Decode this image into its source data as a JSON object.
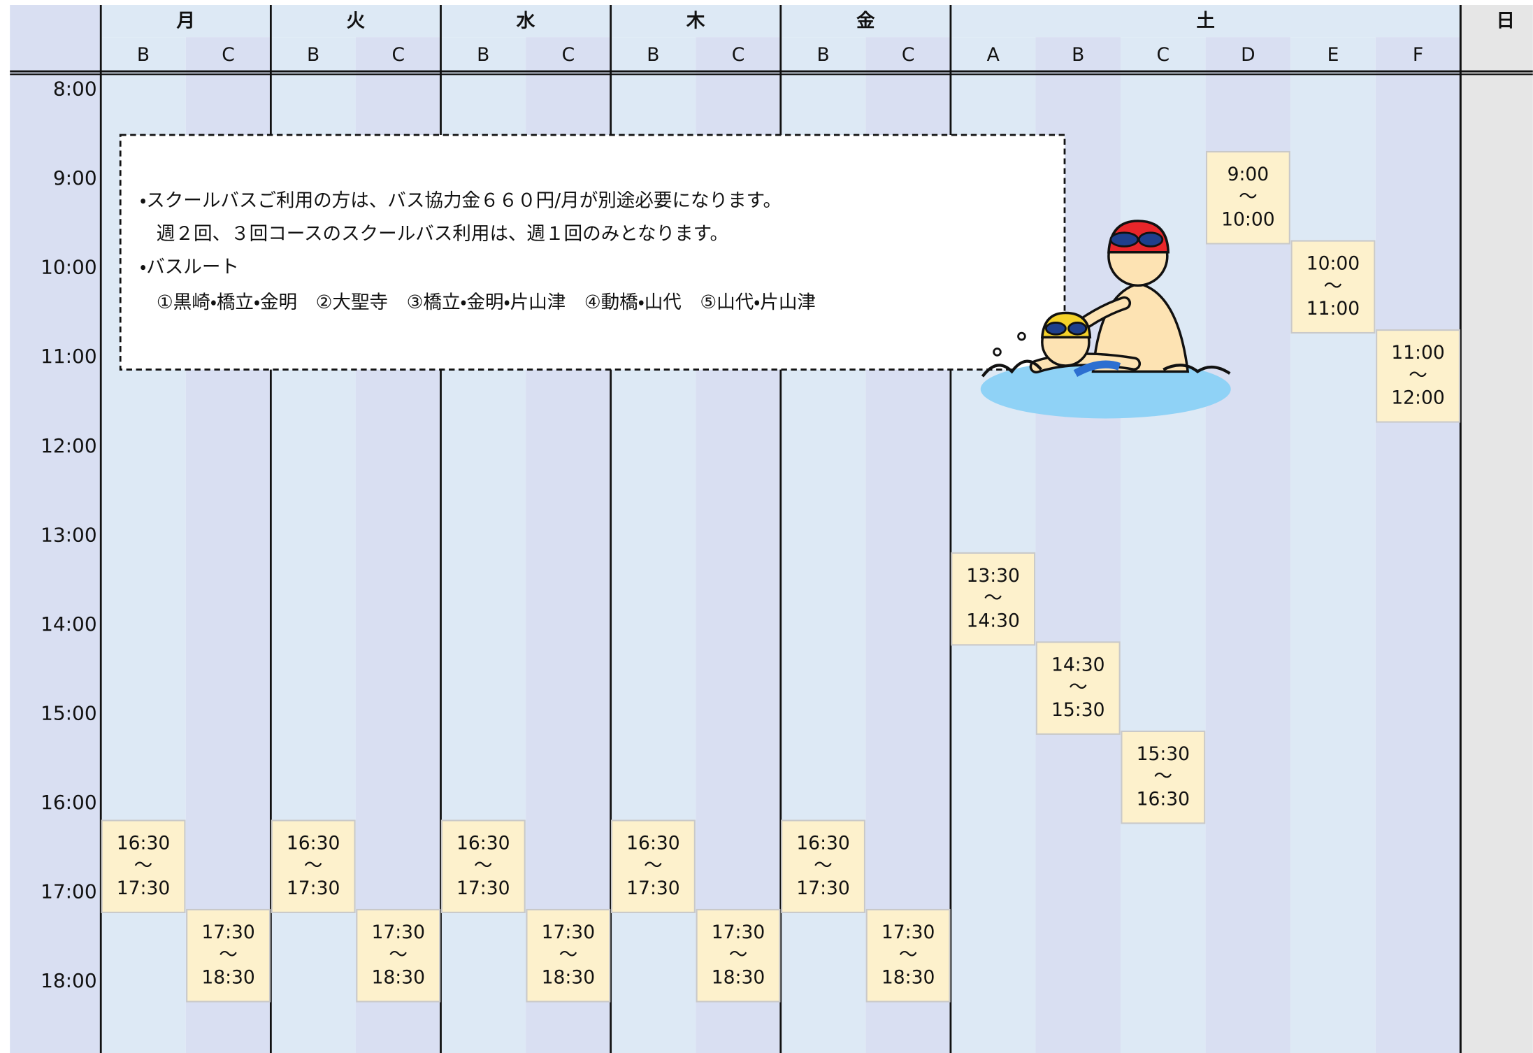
{
  "header": {
    "days": [
      {
        "label": "月",
        "columns": [
          {
            "label": "B",
            "slots": [
              {
                "start": "16:30",
                "separator": "〜",
                "end": "17:30"
              }
            ]
          },
          {
            "label": "C",
            "slots": [
              {
                "start": "17:30",
                "separator": "〜",
                "end": "18:30"
              }
            ]
          }
        ]
      },
      {
        "label": "火",
        "columns": [
          {
            "label": "B",
            "slots": [
              {
                "start": "16:30",
                "separator": "〜",
                "end": "17:30"
              }
            ]
          },
          {
            "label": "C",
            "slots": [
              {
                "start": "17:30",
                "separator": "〜",
                "end": "18:30"
              }
            ]
          }
        ]
      },
      {
        "label": "水",
        "columns": [
          {
            "label": "B",
            "slots": [
              {
                "start": "16:30",
                "separator": "〜",
                "end": "17:30"
              }
            ]
          },
          {
            "label": "C",
            "slots": [
              {
                "start": "17:30",
                "separator": "〜",
                "end": "18:30"
              }
            ]
          }
        ]
      },
      {
        "label": "木",
        "columns": [
          {
            "label": "B",
            "slots": [
              {
                "start": "16:30",
                "separator": "〜",
                "end": "17:30"
              }
            ]
          },
          {
            "label": "C",
            "slots": [
              {
                "start": "17:30",
                "separator": "〜",
                "end": "18:30"
              }
            ]
          }
        ]
      },
      {
        "label": "金",
        "columns": [
          {
            "label": "B",
            "slots": [
              {
                "start": "16:30",
                "separator": "〜",
                "end": "17:30"
              }
            ]
          },
          {
            "label": "C",
            "slots": [
              {
                "start": "17:30",
                "separator": "〜",
                "end": "18:30"
              }
            ]
          }
        ]
      },
      {
        "label": "土",
        "columns": [
          {
            "label": "A",
            "slots": [
              {
                "start": "13:30",
                "separator": "〜",
                "end": "14:30"
              }
            ]
          },
          {
            "label": "B",
            "slots": [
              {
                "start": "14:30",
                "separator": "〜",
                "end": "15:30"
              }
            ]
          },
          {
            "label": "C",
            "slots": [
              {
                "start": "15:30",
                "separator": "〜",
                "end": "16:30"
              }
            ]
          },
          {
            "label": "D",
            "slots": [
              {
                "start": "9:00",
                "separator": "〜",
                "end": "10:00"
              }
            ]
          },
          {
            "label": "E",
            "slots": [
              {
                "start": "10:00",
                "separator": "〜",
                "end": "11:00"
              }
            ]
          },
          {
            "label": "F",
            "slots": [
              {
                "start": "11:00",
                "separator": "〜",
                "end": "12:00"
              }
            ]
          }
        ]
      },
      {
        "label": "日",
        "columns": []
      }
    ]
  },
  "times": [
    "8:00",
    "9:00",
    "10:00",
    "11:00",
    "12:00",
    "13:00",
    "14:00",
    "15:00",
    "16:00",
    "17:00",
    "18:00"
  ],
  "note": {
    "lines": [
      "・スクールバスご利用の方は、バス協力金６６０円/月が別途必要になります。",
      "週２回、３回コースのスクールバス利用は、週１回のみとなります。",
      "・バスルート",
      "①黒崎・橋立・金明　②大聖寺　③橋立・金明・片山津　④動橋・山代　⑤山代・片山津"
    ]
  }
}
